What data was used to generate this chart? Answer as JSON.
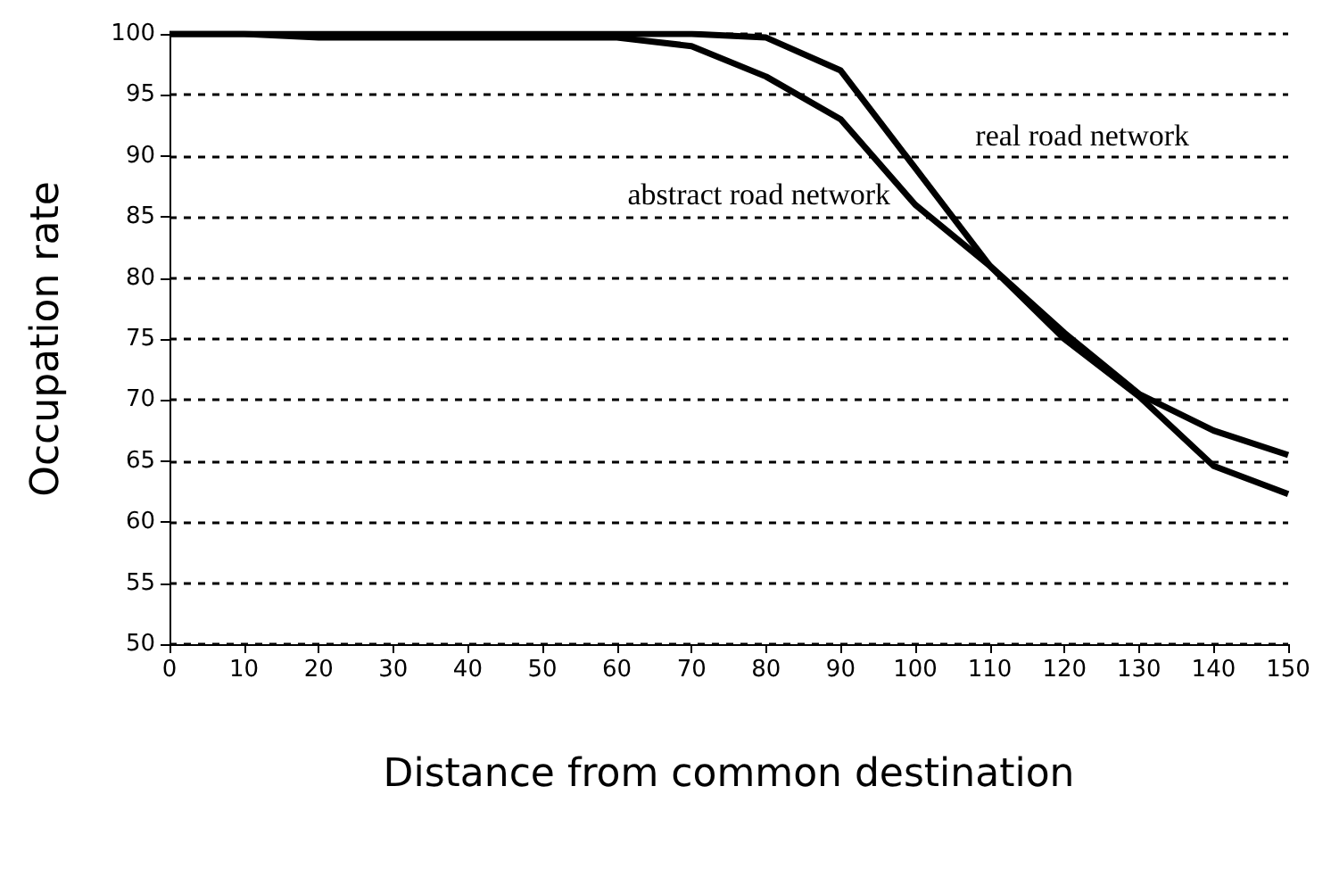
{
  "chart_data": {
    "type": "line",
    "xlabel": "Distance from common destination",
    "ylabel": "Occupation rate",
    "x": [
      0,
      10,
      20,
      30,
      40,
      50,
      60,
      70,
      80,
      90,
      100,
      110,
      120,
      130,
      140,
      150
    ],
    "series": [
      {
        "name": "real road network",
        "color": "#000000",
        "values": [
          100,
          100,
          100,
          100,
          100,
          100,
          100,
          100,
          99.7,
          97,
          89,
          81,
          75,
          70.3,
          64.6,
          62.3
        ]
      },
      {
        "name": "abstract road network",
        "color": "#000000",
        "values": [
          100,
          100,
          99.7,
          99.7,
          99.7,
          99.7,
          99.7,
          99,
          96.5,
          93,
          86,
          81,
          75.5,
          70.5,
          67.5,
          65.5
        ]
      }
    ],
    "xlim": [
      0,
      150
    ],
    "xticks": [
      0,
      10,
      20,
      30,
      40,
      50,
      60,
      70,
      80,
      90,
      100,
      110,
      120,
      130,
      140,
      150
    ],
    "ylim": [
      50,
      100
    ],
    "yticks": [
      50,
      55,
      60,
      65,
      70,
      75,
      80,
      85,
      90,
      95,
      100
    ],
    "grid": "y",
    "marker": "none",
    "line_style": "solid"
  }
}
